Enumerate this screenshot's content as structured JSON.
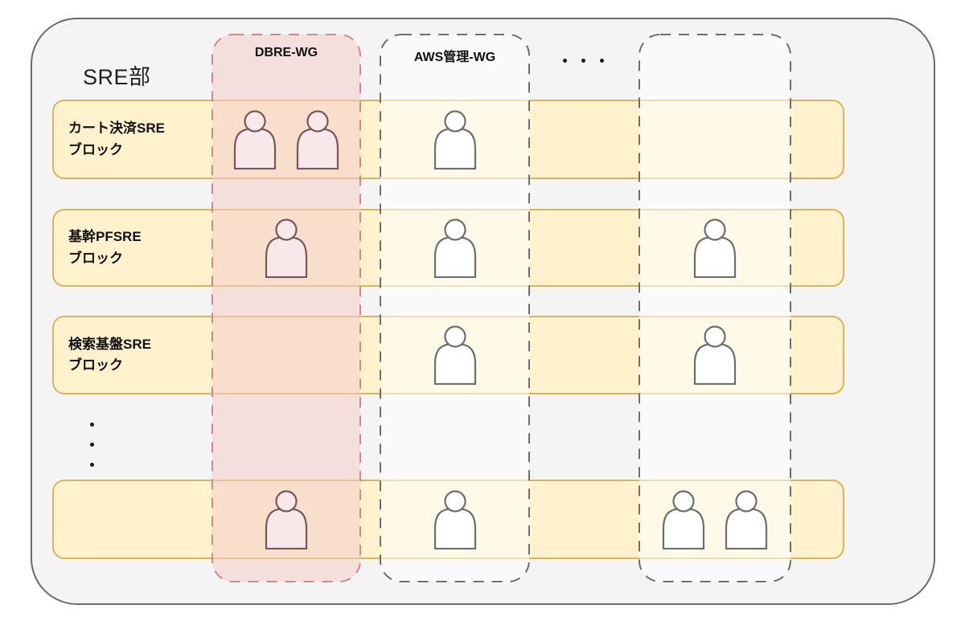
{
  "container": {
    "title": "SRE部"
  },
  "columns": [
    {
      "label": "DBRE-WG",
      "theme": "pink"
    },
    {
      "label": "AWS管理-WG",
      "theme": "gray"
    },
    {
      "label": "",
      "theme": "gray"
    }
  ],
  "rows": [
    {
      "label_lines": [
        "カート決済SRE",
        "ブロック"
      ]
    },
    {
      "label_lines": [
        "基幹PFSRE",
        "ブロック"
      ]
    },
    {
      "label_lines": [
        "検索基盤SRE",
        "ブロック"
      ]
    },
    {
      "label_lines": []
    }
  ],
  "membership_counts": [
    [
      2,
      1,
      0
    ],
    [
      1,
      1,
      1
    ],
    [
      0,
      1,
      1
    ],
    [
      1,
      1,
      2
    ]
  ],
  "more_columns_indicator": "...",
  "more_rows_indicator": "...",
  "icons": {
    "person": "person-icon"
  },
  "colors": {
    "container_fill": "#F4F4F4",
    "container_border": "#6B6B6B",
    "row_fill": "#FFF2CC",
    "row_border": "#D6B656",
    "pink_column_fill": "rgba(244,205,203,0.55)",
    "pink_column_border": "#CD8B88",
    "gray_column_fill": "rgba(255,255,255,0.55)",
    "gray_column_border": "#6E6E6E",
    "person_fill": "#FFFFFF",
    "person_stroke": "#6E6E6E",
    "person_fill_pink": "#F9E8EA",
    "person_stroke_pink": "#75595A"
  }
}
